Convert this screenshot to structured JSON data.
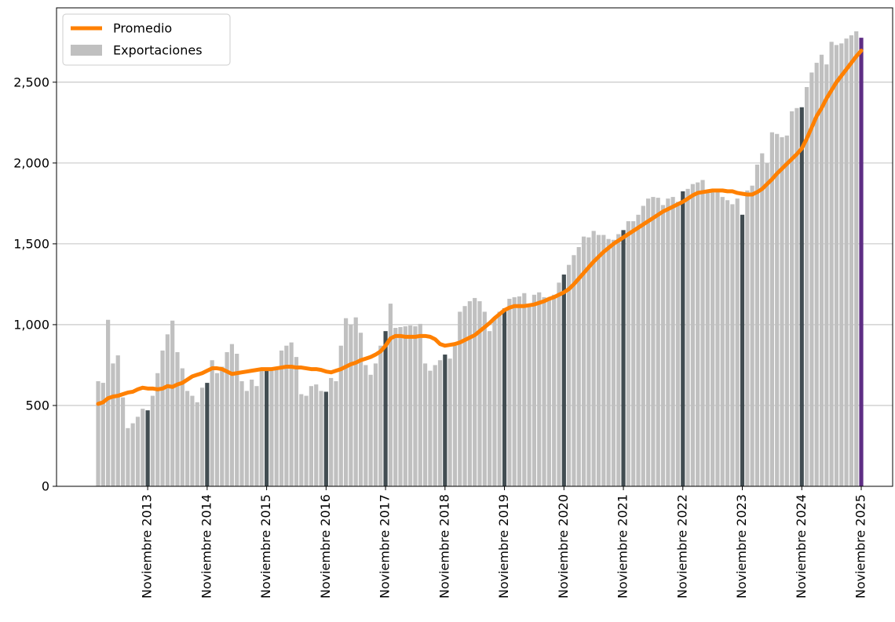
{
  "chart_data": {
    "type": "combo",
    "categories": [
      null,
      null,
      null,
      null,
      null,
      null,
      null,
      null,
      null,
      null,
      "Noviembre 2013",
      null,
      null,
      null,
      null,
      null,
      null,
      null,
      null,
      null,
      null,
      null,
      "Noviembre 2014",
      null,
      null,
      null,
      null,
      null,
      null,
      null,
      null,
      null,
      null,
      null,
      "Noviembre 2015",
      null,
      null,
      null,
      null,
      null,
      null,
      null,
      null,
      null,
      null,
      null,
      "Noviembre 2016",
      null,
      null,
      null,
      null,
      null,
      null,
      null,
      null,
      null,
      null,
      null,
      "Noviembre 2017",
      null,
      null,
      null,
      null,
      null,
      null,
      null,
      null,
      null,
      null,
      null,
      "Noviembre 2018",
      null,
      null,
      null,
      null,
      null,
      null,
      null,
      null,
      null,
      null,
      null,
      "Noviembre 2019",
      null,
      null,
      null,
      null,
      null,
      null,
      null,
      null,
      null,
      null,
      null,
      "Noviembre 2020",
      null,
      null,
      null,
      null,
      null,
      null,
      null,
      null,
      null,
      null,
      null,
      "Noviembre 2021",
      null,
      null,
      null,
      null,
      null,
      null,
      null,
      null,
      null,
      null,
      null,
      "Noviembre 2022",
      null,
      null,
      null,
      null,
      null,
      null,
      null,
      null,
      null,
      null,
      null,
      "Noviembre 2023",
      null,
      null,
      null,
      null,
      null,
      null,
      null,
      null,
      null,
      null,
      null,
      "Noviembre 2024",
      null,
      null,
      null,
      null,
      null,
      null,
      null,
      null,
      null,
      null,
      null,
      "Noviembre 2025"
    ],
    "series": [
      {
        "name": "Promedio",
        "type": "line",
        "color": "#ff8000",
        "values": [
          510,
          520,
          545,
          555,
          560,
          570,
          580,
          585,
          600,
          610,
          605,
          605,
          600,
          605,
          620,
          615,
          630,
          640,
          660,
          680,
          690,
          700,
          715,
          730,
          730,
          725,
          710,
          695,
          700,
          705,
          710,
          715,
          720,
          725,
          725,
          725,
          730,
          735,
          740,
          740,
          735,
          735,
          730,
          725,
          725,
          720,
          710,
          705,
          715,
          725,
          740,
          755,
          765,
          780,
          790,
          800,
          815,
          835,
          870,
          915,
          930,
          930,
          925,
          925,
          925,
          930,
          930,
          925,
          910,
          880,
          870,
          875,
          880,
          890,
          905,
          920,
          935,
          960,
          985,
          1010,
          1040,
          1065,
          1090,
          1105,
          1115,
          1115,
          1115,
          1120,
          1125,
          1135,
          1145,
          1160,
          1170,
          1185,
          1200,
          1220,
          1250,
          1285,
          1320,
          1355,
          1390,
          1420,
          1450,
          1475,
          1500,
          1520,
          1540,
          1560,
          1580,
          1600,
          1620,
          1640,
          1660,
          1680,
          1700,
          1715,
          1730,
          1745,
          1760,
          1780,
          1800,
          1815,
          1820,
          1825,
          1830,
          1830,
          1830,
          1825,
          1825,
          1815,
          1810,
          1805,
          1805,
          1820,
          1840,
          1870,
          1900,
          1935,
          1965,
          1995,
          2025,
          2055,
          2090,
          2150,
          2220,
          2290,
          2340,
          2400,
          2450,
          2500,
          2540,
          2580,
          2620,
          2660,
          2695
        ]
      },
      {
        "name": "Exportaciones",
        "type": "bar",
        "color": "#c0c0c0",
        "values": [
          650,
          640,
          1030,
          760,
          810,
          550,
          360,
          390,
          430,
          480,
          470,
          560,
          700,
          840,
          940,
          1025,
          830,
          730,
          590,
          560,
          520,
          610,
          640,
          780,
          700,
          740,
          830,
          880,
          820,
          650,
          590,
          660,
          620,
          730,
          720,
          730,
          740,
          840,
          870,
          890,
          800,
          570,
          560,
          620,
          630,
          590,
          585,
          670,
          650,
          870,
          1040,
          1000,
          1045,
          950,
          750,
          690,
          760,
          870,
          960,
          1130,
          980,
          985,
          990,
          995,
          990,
          1005,
          760,
          715,
          750,
          780,
          815,
          790,
          870,
          1080,
          1115,
          1145,
          1165,
          1145,
          1080,
          960,
          1040,
          1080,
          1100,
          1160,
          1170,
          1175,
          1195,
          1110,
          1185,
          1200,
          1170,
          1165,
          1185,
          1260,
          1310,
          1370,
          1430,
          1480,
          1545,
          1540,
          1580,
          1555,
          1555,
          1530,
          1525,
          1560,
          1585,
          1640,
          1640,
          1680,
          1735,
          1780,
          1790,
          1785,
          1740,
          1780,
          1790,
          1760,
          1825,
          1840,
          1870,
          1880,
          1895,
          1830,
          1820,
          1825,
          1790,
          1770,
          1745,
          1780,
          1680,
          1830,
          1860,
          1990,
          2060,
          2000,
          2190,
          2180,
          2160,
          2170,
          2320,
          2340,
          2345,
          2470,
          2560,
          2620,
          2670,
          2610,
          2750,
          2730,
          2740,
          2770,
          2790,
          2815,
          2775
        ]
      }
    ],
    "highlight_color": "#424d52",
    "last_color": "#5e2d84",
    "ylim": [
      0,
      2960
    ],
    "yticks": [
      0,
      500,
      {
        "value": 1000,
        "label": "1,000"
      },
      {
        "value": 1500,
        "label": "1,500"
      },
      {
        "value": 2000,
        "label": "2,000"
      },
      {
        "value": 2500,
        "label": "2,500"
      }
    ],
    "grid": true,
    "legend": "upper left"
  }
}
